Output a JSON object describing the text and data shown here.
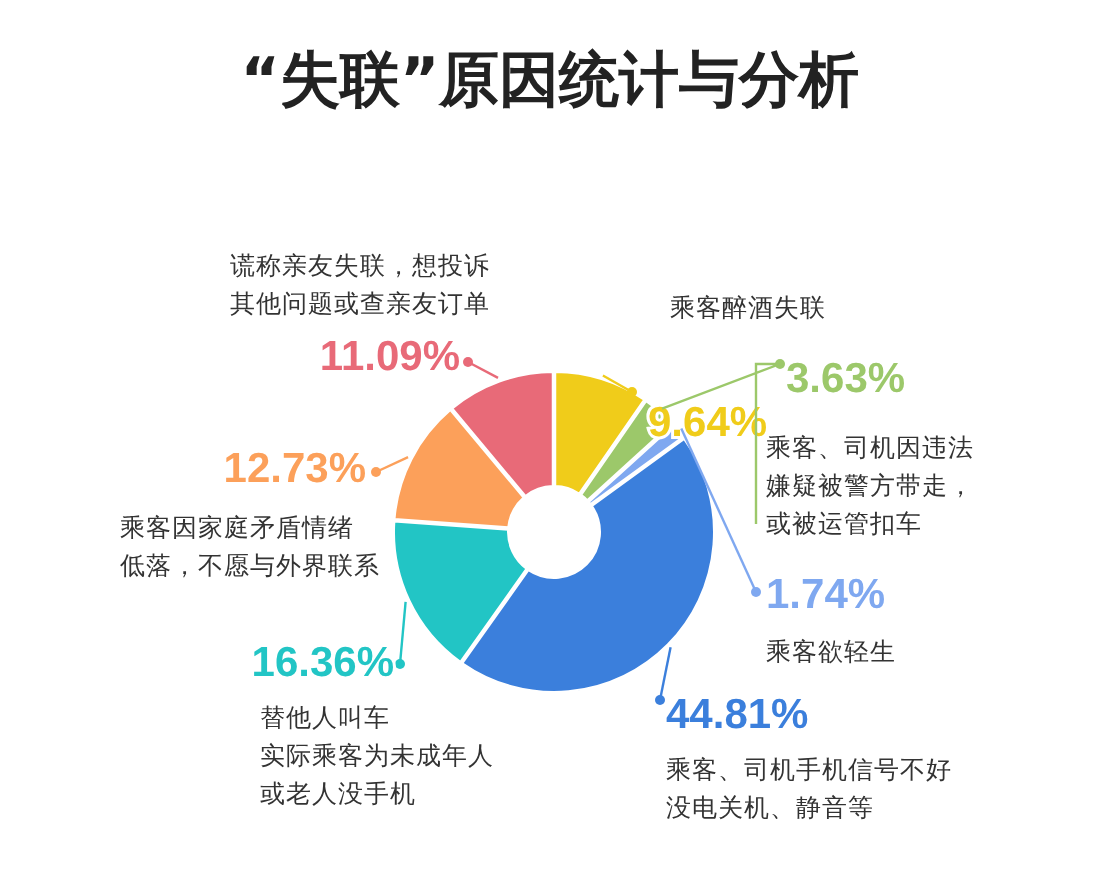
{
  "chart_data": {
    "type": "donut",
    "title": "“失联”原因统计与分析",
    "categories": [
      "乘客醉酒失联",
      "乘客、司机因违法嫌疑被警方带走，或被运管扣车",
      "乘客欲轻生",
      "乘客、司机手机信号不好没电关机、静音等",
      "替他人叫车实际乘客为未成年人或老人没手机",
      "乘客因家庭矛盾情绪低落，不愿与外界联系",
      "谎称亲友失联，想投诉其他问题或查亲友订单"
    ],
    "values": [
      9.64,
      3.63,
      1.74,
      44.81,
      16.36,
      12.73,
      11.09
    ],
    "value_labels": [
      "9.64%",
      "3.63%",
      "1.74%",
      "44.81%",
      "16.36%",
      "12.73%",
      "11.09%"
    ],
    "colors": [
      "#f0cc1a",
      "#9cc86a",
      "#7fa8f0",
      "#3b7fdc",
      "#22c5c5",
      "#fca05a",
      "#e86a78"
    ]
  }
}
